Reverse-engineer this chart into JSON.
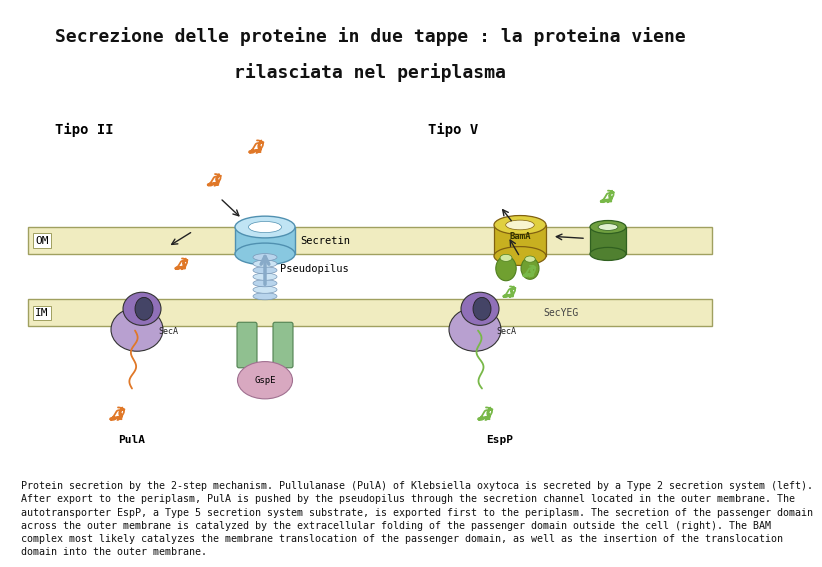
{
  "title_line1": "Secrezione delle proteine in due tappe : la proteina viene",
  "title_line2": "rilasciata nel periplasma",
  "title_bg": "#d8f4f8",
  "fig_bg": "#ffffff",
  "label_tipo2": "Tipo II",
  "label_tipo5": "Tipo V",
  "label_OM": "OM",
  "label_IM": "IM",
  "label_secretin": "Secretin",
  "label_pseudopilus": "Pseudopilus",
  "label_gspe": "GspE",
  "label_seca1": "SecA",
  "label_pula": "PulA",
  "label_bama": "BamA",
  "label_secyeg": "SecYEG",
  "label_seca2": "SecA",
  "label_espp": "EspP",
  "caption": "Protein secretion by the 2-step mechanism. Pullulanase (PulA) of Klebsiella oxytoca is secreted by a Type 2 secretion system (left).\nAfter export to the periplasm, PulA is pushed by the pseudopilus through the secretion channel located in the outer membrane. The\nautotransporter EspP, a Type 5 secretion system substrate, is exported first to the periplasm. The secretion of the passenger domain\nacross the outer membrane is catalyzed by the extracellular folding of the passenger domain outside the cell (right). The BAM\ncomplex most likely catalyzes the membrane translocation of the passenger domain, as well as the insertion of the translocation\ndomain into the outer membrane.",
  "om_color": "#f0ecc0",
  "im_color": "#f0ecc0",
  "om_border": "#a0a060",
  "im_border": "#a0a060",
  "secretin_body": "#88c8e0",
  "secretin_top_color": "#c0e4f4",
  "secretin_inner": "#ffffff",
  "pseudopilus_color": "#b0d0e8",
  "gspe_color": "#90c090",
  "gspe_dark": "#508050",
  "gspe_pink": "#d8a8c0",
  "seca_purple": "#9070b8",
  "seca_light": "#b8a0d0",
  "bama_yellow": "#c8b820",
  "bama_body": "#c8b820",
  "bama_green1": "#70a030",
  "bama_green2": "#508020",
  "barrel_green": "#508030",
  "barrel_green_top": "#70a040",
  "barrel_inner": "#ffffff",
  "arrow_color": "#222222",
  "orange_protein": "#e07828",
  "green_protein": "#78b848",
  "title_fontsize": 13,
  "label_fontsize": 10,
  "caption_fontsize": 7.2
}
